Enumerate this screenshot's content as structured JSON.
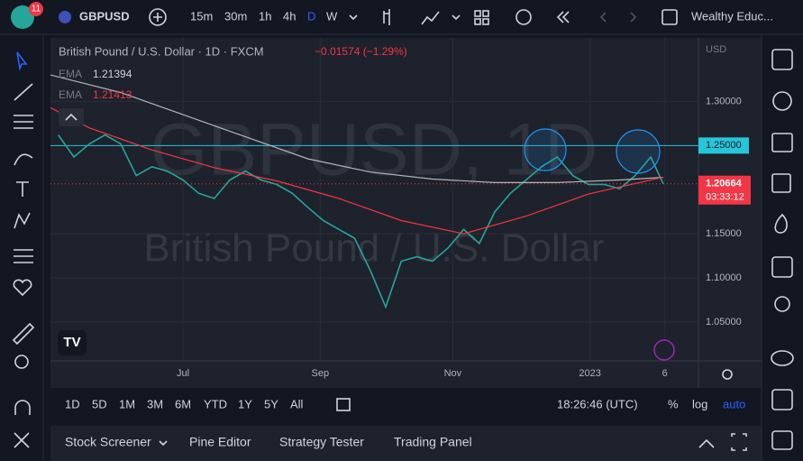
{
  "top_bar": {
    "badge": "11",
    "symbol": "GBPUSD",
    "intervals": [
      "15m",
      "30m",
      "1h",
      "4h",
      "D",
      "W"
    ],
    "account": "Wealthy Educ..."
  },
  "legend": {
    "title": "British Pound / U.S. Dollar · 1D · FXCM",
    "change": "−0.01574 (−1.29%)",
    "currency": "USD"
  },
  "watermark": {
    "symbol": "GBPUSD, 1D",
    "name": "British Pound / U.S. Dollar"
  },
  "chart_data": {
    "type": "line",
    "xlim": [
      -8.5,
      33.06
    ],
    "ylim": [
      1.006,
      1.372
    ],
    "xticks": [
      {
        "value": 0,
        "label": "Jul"
      },
      {
        "value": 8.8,
        "label": "Sep"
      },
      {
        "value": 17.3,
        "label": "Nov"
      },
      {
        "value": 26.1,
        "label": "2023"
      },
      {
        "value": 30.9,
        "label": "6"
      }
    ],
    "yticks": [
      {
        "value": 1.05,
        "label": "1.05000"
      },
      {
        "value": 1.1,
        "label": "1.10000"
      },
      {
        "value": 1.15,
        "label": "1.15000"
      },
      {
        "value": 1.3,
        "label": "1.30000"
      }
    ],
    "grid": true,
    "hline": {
      "value": 1.25,
      "label": "1.25000",
      "color": "#26c6da"
    },
    "countdown": "03:33:12",
    "series": [
      {
        "color": "#26a69a",
        "x": [
          -8,
          -7,
          -6,
          -5,
          -4,
          -3,
          -2,
          -1,
          0,
          1,
          2,
          3,
          4,
          5,
          6,
          7,
          8,
          9,
          10,
          11,
          12,
          13,
          14,
          15,
          16,
          17,
          18,
          19,
          20,
          21,
          22,
          23,
          24,
          25,
          26,
          27,
          28,
          29,
          30,
          30.8
        ],
        "values": [
          1.262,
          1.237,
          1.252,
          1.262,
          1.252,
          1.216,
          1.226,
          1.221,
          1.211,
          1.196,
          1.19,
          1.211,
          1.221,
          1.211,
          1.206,
          1.196,
          1.18,
          1.165,
          1.155,
          1.145,
          1.109,
          1.067,
          1.119,
          1.124,
          1.119,
          1.134,
          1.155,
          1.139,
          1.175,
          1.196,
          1.211,
          1.226,
          1.237,
          1.216,
          1.206,
          1.206,
          1.201,
          1.216,
          1.237,
          1.20664
        ]
      },
      {
        "name": "EMA",
        "color": "#b2b5be",
        "x": [
          -8.5,
          -4,
          0,
          4,
          8,
          12,
          16,
          20,
          24,
          28,
          30.8
        ],
        "values": [
          1.33,
          1.31,
          1.285,
          1.26,
          1.235,
          1.22,
          1.212,
          1.208,
          1.208,
          1.211,
          1.21394
        ]
      },
      {
        "name": "EMA",
        "color": "#f23645",
        "x": [
          -8.5,
          -6,
          -2,
          2,
          6,
          10,
          14,
          18,
          22,
          26,
          30.8
        ],
        "values": [
          1.293,
          1.27,
          1.245,
          1.225,
          1.21,
          1.19,
          1.165,
          1.15,
          1.17,
          1.195,
          1.21413
        ]
      }
    ]
  },
  "range_bar": {
    "ranges": [
      "1D",
      "5D",
      "1M",
      "3M",
      "6M",
      "YTD",
      "1Y",
      "5Y",
      "All"
    ],
    "time": "18:26:46 (UTC)",
    "options": [
      "%",
      "log",
      "auto"
    ]
  },
  "bottom_tabs": [
    "Stock Screener",
    "Pine Editor",
    "Strategy Tester",
    "Trading Panel"
  ]
}
